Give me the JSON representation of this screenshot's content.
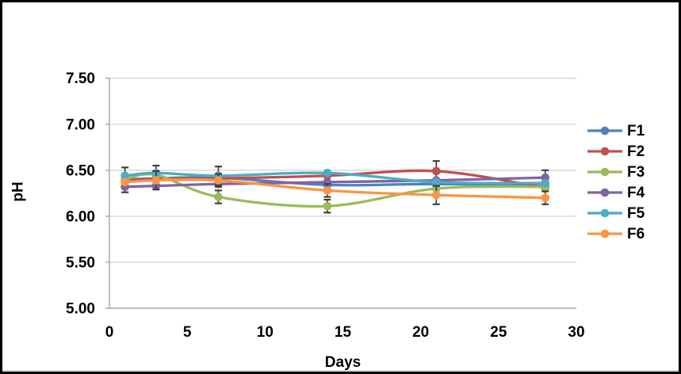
{
  "figure": {
    "background": "#FFFFFF",
    "border_color": "#000000"
  },
  "chart_data": {
    "type": "line",
    "title": "",
    "xlabel": "Days",
    "ylabel": "pH",
    "x": [
      1,
      3,
      7,
      14,
      21,
      28
    ],
    "xlim": [
      0,
      30
    ],
    "ylim": [
      5.0,
      7.5
    ],
    "xticks": [
      "0",
      "5",
      "10",
      "15",
      "20",
      "25",
      "30"
    ],
    "yticks": [
      "5.00",
      "5.50",
      "6.00",
      "6.50",
      "7.00",
      "7.50"
    ],
    "grid": "horizontal",
    "legend_position": "right",
    "line_style": "smooth",
    "marker": "circle",
    "error_bars": true,
    "error_bar_color": "#404040",
    "axis_color": "#A6A6A6",
    "grid_color": "#D6D6D6",
    "tick_label_color": "#000000",
    "series": [
      {
        "name": "F1",
        "color": "#4F81BD",
        "values": [
          6.4,
          6.41,
          6.42,
          6.34,
          6.35,
          6.33
        ],
        "err": [
          null,
          null,
          null,
          null,
          null,
          null
        ]
      },
      {
        "name": "F2",
        "color": "#C0504D",
        "values": [
          6.38,
          6.41,
          6.41,
          6.44,
          6.49,
          6.31
        ],
        "err": [
          null,
          null,
          null,
          null,
          0.11,
          null
        ]
      },
      {
        "name": "F3",
        "color": "#9BBB59",
        "values": [
          6.4,
          6.45,
          6.21,
          6.11,
          6.3,
          6.32
        ],
        "err": [
          null,
          null,
          0.07,
          0.07,
          null,
          null
        ]
      },
      {
        "name": "F4",
        "color": "#8064A2",
        "values": [
          6.32,
          6.33,
          6.35,
          6.37,
          6.39,
          6.42
        ],
        "err": [
          0.06,
          null,
          null,
          null,
          null,
          0.08
        ]
      },
      {
        "name": "F5",
        "color": "#4BACC6",
        "values": [
          6.44,
          6.47,
          6.44,
          6.47,
          6.37,
          6.36
        ],
        "err": [
          0.09,
          0.08,
          0.1,
          null,
          null,
          null
        ]
      },
      {
        "name": "F6",
        "color": "#F79646",
        "values": [
          6.37,
          6.39,
          6.39,
          6.28,
          6.23,
          6.2
        ],
        "err": [
          null,
          0.1,
          0.07,
          0.07,
          0.1,
          0.07
        ]
      }
    ]
  }
}
